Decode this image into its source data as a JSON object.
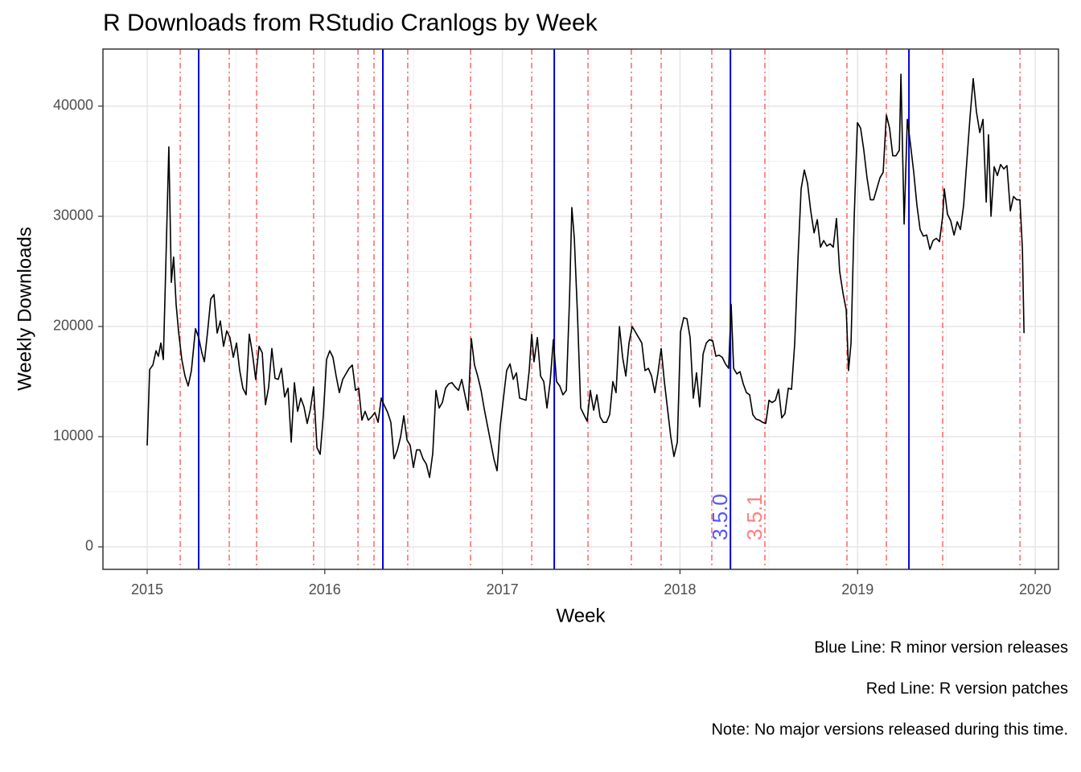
{
  "chart_data": {
    "type": "line",
    "title": "R Downloads from RStudio Cranlogs by Week",
    "xlabel": "Week",
    "ylabel": "Weekly Downloads",
    "xlim": [
      2014.751,
      2020.131
    ],
    "ylim": [
      -2044,
      45182
    ],
    "xticks": [
      2015,
      2016,
      2017,
      2018,
      2019,
      2020
    ],
    "yticks": [
      0,
      10000,
      20000,
      30000,
      40000
    ],
    "grid": true,
    "series": [
      {
        "color": "#000000",
        "x": [
          2015.0,
          2015.014,
          2015.032,
          2015.05,
          2015.063,
          2015.077,
          2015.091,
          2015.104,
          2015.122,
          2015.136,
          2015.149,
          2015.163,
          2015.177,
          2015.195,
          2015.213,
          2015.231,
          2015.249,
          2015.272,
          2015.29,
          2015.308,
          2015.322,
          2015.34,
          2015.358,
          2015.376,
          2015.394,
          2015.412,
          2015.43,
          2015.448,
          2015.466,
          2015.485,
          2015.503,
          2015.521,
          2015.539,
          2015.557,
          2015.575,
          2015.593,
          2015.611,
          2015.63,
          2015.648,
          2015.666,
          2015.684,
          2015.702,
          2015.72,
          2015.738,
          2015.756,
          2015.774,
          2015.793,
          2015.811,
          2015.829,
          2015.847,
          2015.865,
          2015.883,
          2015.901,
          2015.919,
          2015.937,
          2015.956,
          2015.974,
          2015.992,
          2016.01,
          2016.028,
          2016.046,
          2016.064,
          2016.082,
          2016.101,
          2016.119,
          2016.137,
          2016.155,
          2016.173,
          2016.191,
          2016.209,
          2016.227,
          2016.245,
          2016.264,
          2016.282,
          2016.3,
          2016.318,
          2016.336,
          2016.354,
          2016.372,
          2016.39,
          2016.409,
          2016.427,
          2016.445,
          2016.463,
          2016.481,
          2016.499,
          2016.517,
          2016.535,
          2016.553,
          2016.572,
          2016.59,
          2016.608,
          2016.626,
          2016.644,
          2016.662,
          2016.68,
          2016.698,
          2016.716,
          2016.735,
          2016.753,
          2016.771,
          2016.789,
          2016.807,
          2016.825,
          2016.843,
          2016.861,
          2016.88,
          2016.898,
          2016.916,
          2016.934,
          2016.952,
          2016.97,
          2016.988,
          2017.006,
          2017.024,
          2017.043,
          2017.061,
          2017.079,
          2017.097,
          2017.115,
          2017.133,
          2017.151,
          2017.165,
          2017.178,
          2017.197,
          2017.215,
          2017.233,
          2017.251,
          2017.269,
          2017.287,
          2017.305,
          2017.323,
          2017.341,
          2017.36,
          2017.378,
          2017.391,
          2017.405,
          2017.423,
          2017.441,
          2017.459,
          2017.477,
          2017.495,
          2017.514,
          2017.532,
          2017.55,
          2017.568,
          2017.586,
          2017.604,
          2017.622,
          2017.64,
          2017.659,
          2017.677,
          2017.695,
          2017.713,
          2017.731,
          2017.749,
          2017.767,
          2017.785,
          2017.803,
          2017.822,
          2017.84,
          2017.858,
          2017.876,
          2017.894,
          2017.912,
          2017.93,
          2017.948,
          2017.966,
          2017.985,
          2018.003,
          2018.021,
          2018.039,
          2018.057,
          2018.075,
          2018.093,
          2018.111,
          2018.13,
          2018.148,
          2018.166,
          2018.184,
          2018.202,
          2018.22,
          2018.238,
          2018.256,
          2018.274,
          2018.288,
          2018.302,
          2018.32,
          2018.338,
          2018.356,
          2018.374,
          2018.392,
          2018.41,
          2018.428,
          2018.447,
          2018.465,
          2018.483,
          2018.501,
          2018.519,
          2018.537,
          2018.555,
          2018.573,
          2018.591,
          2018.61,
          2018.628,
          2018.646,
          2018.664,
          2018.682,
          2018.7,
          2018.718,
          2018.736,
          2018.755,
          2018.773,
          2018.791,
          2018.809,
          2018.827,
          2018.845,
          2018.863,
          2018.881,
          2018.899,
          2018.918,
          2018.936,
          2018.949,
          2018.963,
          2018.981,
          2018.999,
          2019.017,
          2019.035,
          2019.053,
          2019.072,
          2019.09,
          2019.108,
          2019.126,
          2019.144,
          2019.162,
          2019.18,
          2019.198,
          2019.216,
          2019.235,
          2019.244,
          2019.262,
          2019.28,
          2019.298,
          2019.316,
          2019.334,
          2019.352,
          2019.37,
          2019.389,
          2019.407,
          2019.425,
          2019.443,
          2019.461,
          2019.479,
          2019.488,
          2019.506,
          2019.524,
          2019.543,
          2019.561,
          2019.579,
          2019.597,
          2019.615,
          2019.633,
          2019.651,
          2019.669,
          2019.688,
          2019.706,
          2019.724,
          2019.737,
          2019.751,
          2019.769,
          2019.787,
          2019.805,
          2019.823,
          2019.841,
          2019.86,
          2019.878,
          2019.896,
          2019.914,
          2019.928,
          2019.937
        ],
        "values": [
          9200,
          16100,
          16500,
          17800,
          17300,
          18500,
          17000,
          25000,
          36300,
          24000,
          26300,
          22000,
          19500,
          17000,
          15500,
          14600,
          16000,
          19800,
          19000,
          17600,
          16800,
          19500,
          22500,
          22900,
          19400,
          20500,
          18200,
          19600,
          19000,
          17200,
          18500,
          16000,
          14400,
          13800,
          19300,
          17500,
          15200,
          18200,
          17600,
          12900,
          14500,
          18000,
          15300,
          15200,
          16200,
          13600,
          14400,
          9500,
          14900,
          12300,
          13500,
          12700,
          11200,
          12500,
          14500,
          9000,
          8400,
          12000,
          17000,
          17800,
          17200,
          15500,
          14000,
          15200,
          15700,
          16200,
          16500,
          14200,
          14400,
          11500,
          12300,
          11500,
          11800,
          12200,
          11300,
          13500,
          12800,
          12200,
          11300,
          8000,
          8800,
          10000,
          11900,
          9700,
          9200,
          7200,
          8800,
          8800,
          8000,
          7500,
          6300,
          8500,
          14200,
          12600,
          13100,
          14400,
          14800,
          14900,
          14500,
          14200,
          15200,
          13800,
          12400,
          18900,
          16500,
          15500,
          14200,
          12500,
          11000,
          9500,
          8000,
          6900,
          11000,
          13500,
          16000,
          16600,
          15200,
          15800,
          13500,
          13400,
          13300,
          16000,
          19300,
          16800,
          19000,
          15500,
          15000,
          12600,
          15000,
          18800,
          15000,
          14600,
          13800,
          14200,
          22500,
          30800,
          28000,
          21000,
          12600,
          12000,
          11400,
          14200,
          12400,
          13800,
          11800,
          11300,
          11300,
          12000,
          15000,
          14000,
          20000,
          17200,
          15500,
          18500,
          20000,
          19500,
          19000,
          18500,
          16000,
          16200,
          15500,
          14000,
          15800,
          18000,
          15000,
          12500,
          10000,
          8200,
          9500,
          19500,
          20800,
          20700,
          19000,
          13500,
          15800,
          12700,
          17500,
          18500,
          18800,
          18700,
          17300,
          17400,
          17200,
          16600,
          16200,
          22000,
          16200,
          15700,
          15900,
          14800,
          14000,
          13800,
          12000,
          11600,
          11500,
          11300,
          11200,
          13300,
          13100,
          13300,
          14300,
          11700,
          12100,
          14400,
          14300,
          18500,
          26000,
          32500,
          34200,
          33000,
          30500,
          28500,
          29700,
          27200,
          27800,
          27300,
          27500,
          27200,
          29800,
          25000,
          23000,
          21500,
          16000,
          18500,
          30000,
          38500,
          38000,
          36000,
          33500,
          31500,
          31500,
          32500,
          33500,
          34000,
          39200,
          38000,
          35500,
          35500,
          36000,
          42900,
          29300,
          38800,
          36500,
          34000,
          31000,
          28800,
          28200,
          28300,
          27000,
          27800,
          28000,
          27700,
          30000,
          32500,
          30200,
          29600,
          28300,
          29500,
          28800,
          31000,
          35000,
          39000,
          42500,
          39500,
          37600,
          38800,
          31300,
          37400,
          30000,
          34500,
          33700,
          34700,
          34300,
          34600,
          30500,
          31800,
          31500,
          31500,
          27000,
          19400
        ]
      }
    ],
    "blue_lines": {
      "color": "#0000dd",
      "x": [
        2015.29,
        2016.327,
        2017.292,
        2018.284,
        2019.289
      ]
    },
    "red_lines": {
      "color": "#ff6666",
      "x": [
        2015.186,
        2015.462,
        2015.616,
        2015.937,
        2016.187,
        2016.277,
        2016.467,
        2016.821,
        2017.165,
        2017.482,
        2017.726,
        2017.894,
        2018.179,
        2018.478,
        2018.94,
        2019.162,
        2019.479,
        2019.914
      ]
    },
    "annotations": [
      {
        "text": "3.5.0",
        "x": 2018.284,
        "color": "#5555ff"
      },
      {
        "text": "3.5.1",
        "x": 2018.478,
        "color": "#ff8080"
      }
    ],
    "captions": [
      "Blue Line: R minor version releases",
      "Red Line: R version patches",
      "Note: No major versions released during this time."
    ]
  }
}
